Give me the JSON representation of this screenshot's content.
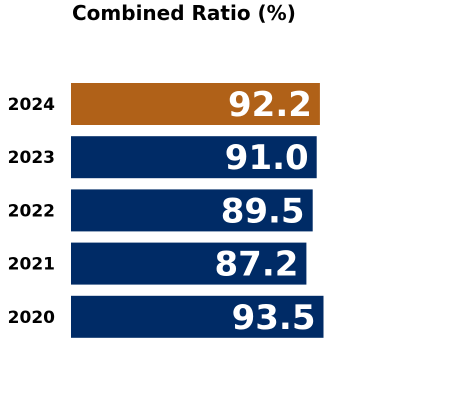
{
  "chart_data": {
    "type": "bar",
    "orientation": "horizontal",
    "title": "Combined Ratio (%)",
    "categories": [
      "2024",
      "2023",
      "2022",
      "2021",
      "2020"
    ],
    "values": [
      92.2,
      91.0,
      89.5,
      87.2,
      93.5
    ],
    "value_labels": [
      "92.2",
      "91.0",
      "89.5",
      "87.2",
      "93.5"
    ],
    "colors": [
      "#B06118",
      "#002B66",
      "#002B66",
      "#002B66",
      "#002B66"
    ],
    "highlight_category": "2024",
    "xlabel": "",
    "ylabel": "",
    "xlim": [
      0,
      100
    ],
    "grid": false,
    "legend": "none"
  }
}
